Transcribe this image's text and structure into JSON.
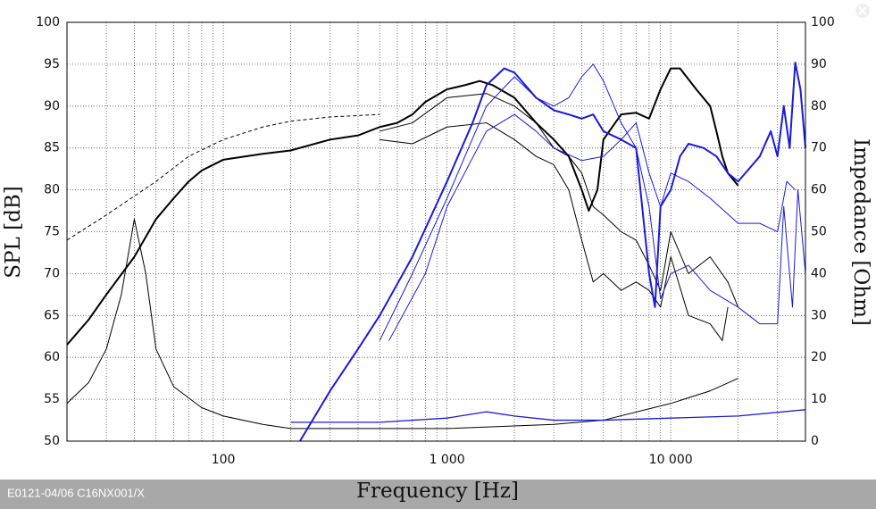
{
  "chart_data": {
    "type": "line",
    "x_label": "Frequency [Hz]",
    "y_label": "SPL [dB]",
    "y2_label": "Impedance [Ohm]",
    "footer": "E0121-04/06 C16NX001/X",
    "x_log": true,
    "grid": true,
    "xlim": [
      20,
      40000
    ],
    "xticks": [
      {
        "value": 100,
        "label": "100"
      },
      {
        "value": 1000,
        "label": "1 000"
      },
      {
        "value": 10000,
        "label": "10 000"
      }
    ],
    "x_minor_ticks": [
      30,
      40,
      50,
      60,
      70,
      80,
      90,
      200,
      300,
      400,
      500,
      600,
      700,
      800,
      900,
      2000,
      3000,
      4000,
      5000,
      6000,
      7000,
      8000,
      9000,
      20000,
      30000
    ],
    "ylim": [
      50,
      100
    ],
    "yticks": [
      50,
      55,
      60,
      65,
      70,
      75,
      80,
      85,
      90,
      95,
      100
    ],
    "y2lim": [
      0,
      100
    ],
    "y2ticks": [
      0,
      10,
      20,
      30,
      40,
      50,
      60,
      70,
      80,
      90,
      100
    ],
    "series": [
      {
        "color": "#000000",
        "width": 2,
        "dashed": false,
        "x": [
          20,
          25,
          30,
          40,
          50,
          60,
          70,
          80,
          100,
          150,
          200,
          300,
          400,
          500,
          600,
          700,
          800,
          1000,
          1200,
          1400,
          1600,
          2000,
          2500,
          3000,
          3500,
          4000,
          4300,
          4700,
          5000,
          6000,
          7000,
          8000,
          9000,
          10000,
          11000,
          13000,
          15000,
          16000,
          17000,
          18000,
          20000
        ],
        "values": [
          61.5,
          64.5,
          67.5,
          72,
          76.5,
          79,
          81,
          82.3,
          83.6,
          84.3,
          84.7,
          86,
          86.5,
          87.5,
          88,
          89,
          90.5,
          92,
          92.5,
          93,
          92.5,
          91,
          88,
          86,
          84,
          80,
          77.5,
          80,
          86,
          89,
          89.2,
          88.5,
          92,
          94.5,
          94.5,
          92,
          90,
          87,
          84,
          82,
          80.5
        ]
      },
      {
        "color": "#000000",
        "width": 1,
        "dashed": true,
        "x": [
          20,
          30,
          50,
          70,
          100,
          150,
          200,
          300,
          500
        ],
        "values": [
          74,
          77,
          81,
          84,
          86,
          87.5,
          88.2,
          88.7,
          89
        ]
      },
      {
        "color": "#000000",
        "width": 1,
        "dashed": false,
        "x": [
          500,
          700,
          1000,
          1500,
          2000,
          2500,
          3000,
          3500,
          4000,
          4500,
          5000,
          6000,
          7000,
          8000,
          9000,
          10000,
          12000,
          15000,
          18000,
          20000
        ],
        "values": [
          87,
          88,
          91,
          91.5,
          90,
          88,
          85,
          84,
          82,
          78,
          77,
          75,
          74,
          71,
          68,
          75,
          70,
          72,
          69,
          66
        ]
      },
      {
        "color": "#000000",
        "width": 1,
        "dashed": false,
        "x": [
          500,
          700,
          1000,
          1500,
          2000,
          2500,
          3000,
          3500,
          4000,
          4500,
          5000,
          6000,
          7000,
          8000,
          9000,
          10000,
          12000,
          15000,
          17000,
          18000
        ],
        "values": [
          86,
          85.5,
          87.5,
          88,
          86,
          84,
          83,
          80,
          74,
          69,
          70,
          68,
          69,
          68,
          66,
          72,
          65,
          64,
          62,
          66
        ]
      },
      {
        "color": "#000000",
        "width": 1,
        "dashed": false,
        "axis": "y2",
        "x": [
          20,
          25,
          30,
          35,
          40,
          45,
          50,
          60,
          80,
          100,
          150,
          200,
          500,
          1000,
          3000,
          5000,
          10000,
          15000,
          20000
        ],
        "values": [
          9,
          14,
          22,
          35,
          53,
          40,
          22,
          13,
          8,
          6,
          4,
          3,
          3,
          3,
          4,
          5,
          9,
          12,
          15
        ]
      },
      {
        "color": "#1a1adc",
        "width": 2,
        "dashed": false,
        "x": [
          220,
          300,
          400,
          500,
          700,
          1000,
          1300,
          1500,
          1800,
          2000,
          2500,
          3000,
          3500,
          4000,
          4500,
          5000,
          6000,
          7000,
          8000,
          8500,
          9000,
          10000,
          11000,
          12000,
          14000,
          16000,
          18000,
          20000,
          25000,
          28000,
          30000,
          32000,
          34000,
          36000,
          38000,
          40000
        ],
        "values": [
          50,
          56,
          61,
          65,
          72,
          81,
          88,
          92.5,
          94.5,
          94,
          91,
          89.5,
          89,
          88.5,
          89,
          87,
          86,
          85,
          70,
          66,
          78,
          80,
          84,
          85.5,
          85,
          84,
          82,
          81,
          84,
          87,
          84,
          90,
          85,
          95.2,
          92,
          85
        ]
      },
      {
        "color": "#1a1adc",
        "width": 1,
        "dashed": false,
        "x": [
          500,
          700,
          1000,
          1500,
          2000,
          2500,
          3000,
          3500,
          4000,
          4500,
          5000,
          6000,
          7000,
          8000,
          9000,
          10000,
          12000,
          15000,
          20000,
          25000,
          30000,
          32000,
          35000,
          37000,
          40000
        ],
        "values": [
          62,
          70,
          79,
          90,
          93.5,
          91,
          90,
          91,
          93.5,
          95,
          93,
          88,
          85,
          78,
          67,
          70,
          71,
          68,
          66,
          64,
          64,
          78,
          66,
          80,
          70
        ]
      },
      {
        "color": "#1a1adc",
        "width": 1,
        "dashed": false,
        "x": [
          550,
          800,
          1000,
          1500,
          2000,
          2500,
          3000,
          4000,
          5000,
          6000,
          7000,
          8000,
          9000,
          10000,
          12000,
          15000,
          20000,
          25000,
          30000,
          33000,
          36000
        ],
        "values": [
          62,
          70,
          78,
          87,
          89,
          87,
          85,
          83.5,
          84,
          86,
          88,
          82,
          78,
          82,
          81,
          79,
          76,
          76,
          75,
          81,
          80
        ]
      },
      {
        "color": "#1a1adc",
        "width": 1.3,
        "dashed": false,
        "axis": "y2",
        "x": [
          200,
          500,
          1000,
          1500,
          2000,
          3000,
          5000,
          10000,
          20000,
          40000
        ],
        "values": [
          4.5,
          4.5,
          5.5,
          7,
          6,
          5,
          5,
          5.5,
          6,
          7.5
        ]
      }
    ]
  }
}
